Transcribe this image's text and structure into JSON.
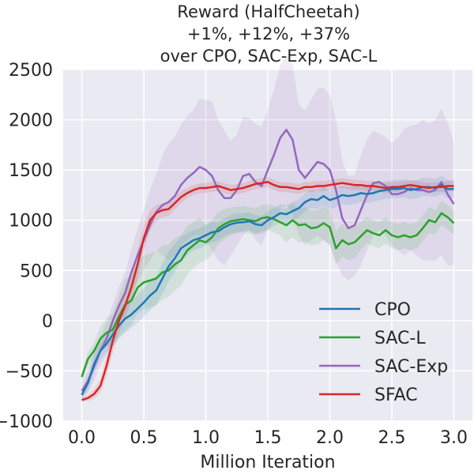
{
  "chart_data": {
    "type": "line",
    "title_lines": [
      "Reward (HalfCheetah)",
      "+1%, +12%, +37%",
      "over CPO, SAC-Exp, SAC-L"
    ],
    "xlabel": "Million Iteration",
    "ylabel": "",
    "xlim": [
      -0.15,
      3.15
    ],
    "ylim": [
      -1000,
      2500
    ],
    "xticks": [
      {
        "value": 0.0,
        "label": "0.0"
      },
      {
        "value": 0.5,
        "label": "0.5"
      },
      {
        "value": 1.0,
        "label": "1.0"
      },
      {
        "value": 1.5,
        "label": "1.5"
      },
      {
        "value": 2.0,
        "label": "2.0"
      },
      {
        "value": 2.5,
        "label": "2.5"
      },
      {
        "value": 3.0,
        "label": "3.0"
      }
    ],
    "yticks": [
      {
        "value": -1000,
        "label": "−1000"
      },
      {
        "value": -500,
        "label": "−500"
      },
      {
        "value": 0,
        "label": "0"
      },
      {
        "value": 500,
        "label": "500"
      },
      {
        "value": 1000,
        "label": "1000"
      },
      {
        "value": 1500,
        "label": "1500"
      },
      {
        "value": 2000,
        "label": "2000"
      },
      {
        "value": 2500,
        "label": "2500"
      }
    ],
    "grid": true,
    "background": "#eaeaf2",
    "legend_position": "lower-right",
    "series": [
      {
        "name": "CPO",
        "color": "#1f77b4",
        "x": [
          0.0,
          0.05,
          0.1,
          0.15,
          0.2,
          0.25,
          0.3,
          0.35,
          0.4,
          0.45,
          0.5,
          0.55,
          0.6,
          0.65,
          0.7,
          0.75,
          0.8,
          0.85,
          0.9,
          0.95,
          1.0,
          1.05,
          1.1,
          1.15,
          1.2,
          1.25,
          1.3,
          1.35,
          1.4,
          1.45,
          1.5,
          1.55,
          1.6,
          1.65,
          1.7,
          1.75,
          1.8,
          1.85,
          1.9,
          1.95,
          2.0,
          2.05,
          2.1,
          2.15,
          2.2,
          2.25,
          2.3,
          2.35,
          2.4,
          2.45,
          2.5,
          2.55,
          2.6,
          2.65,
          2.7,
          2.75,
          2.8,
          2.85,
          2.9,
          2.95,
          3.0
        ],
        "y": [
          -740,
          -620,
          -430,
          -300,
          -230,
          -140,
          -50,
          20,
          60,
          120,
          180,
          250,
          300,
          420,
          540,
          620,
          720,
          760,
          800,
          820,
          850,
          880,
          890,
          930,
          960,
          975,
          980,
          990,
          960,
          950,
          1000,
          1030,
          1070,
          1060,
          1090,
          1120,
          1180,
          1210,
          1200,
          1240,
          1200,
          1220,
          1250,
          1240,
          1250,
          1270,
          1260,
          1270,
          1290,
          1300,
          1310,
          1310,
          1320,
          1300,
          1310,
          1330,
          1330,
          1320,
          1350,
          1310,
          1310
        ],
        "lower": [
          -780,
          -700,
          -520,
          -390,
          -320,
          -250,
          -170,
          -120,
          -70,
          -20,
          40,
          100,
          160,
          270,
          390,
          480,
          600,
          650,
          700,
          720,
          750,
          780,
          800,
          840,
          870,
          880,
          890,
          900,
          870,
          860,
          910,
          940,
          980,
          970,
          1000,
          1030,
          1090,
          1120,
          1110,
          1150,
          1110,
          1130,
          1160,
          1150,
          1160,
          1180,
          1170,
          1180,
          1200,
          1210,
          1220,
          1220,
          1230,
          1210,
          1220,
          1240,
          1240,
          1230,
          1260,
          1220,
          1220
        ],
        "upper": [
          -700,
          -540,
          -340,
          -210,
          -140,
          -30,
          70,
          160,
          190,
          260,
          320,
          400,
          440,
          570,
          690,
          760,
          840,
          870,
          900,
          920,
          950,
          980,
          980,
          1020,
          1050,
          1070,
          1070,
          1080,
          1050,
          1040,
          1090,
          1120,
          1160,
          1150,
          1180,
          1210,
          1270,
          1300,
          1290,
          1330,
          1290,
          1310,
          1340,
          1330,
          1340,
          1360,
          1350,
          1360,
          1380,
          1390,
          1400,
          1400,
          1410,
          1390,
          1400,
          1420,
          1420,
          1410,
          1440,
          1400,
          1400
        ]
      },
      {
        "name": "SAC-L",
        "color": "#2ca02c",
        "x": [
          0.0,
          0.05,
          0.1,
          0.15,
          0.2,
          0.25,
          0.3,
          0.35,
          0.4,
          0.45,
          0.5,
          0.55,
          0.6,
          0.65,
          0.7,
          0.75,
          0.8,
          0.85,
          0.9,
          0.95,
          1.0,
          1.05,
          1.1,
          1.15,
          1.2,
          1.25,
          1.3,
          1.35,
          1.4,
          1.45,
          1.5,
          1.55,
          1.6,
          1.65,
          1.7,
          1.75,
          1.8,
          1.85,
          1.9,
          1.95,
          2.0,
          2.05,
          2.1,
          2.15,
          2.2,
          2.25,
          2.3,
          2.35,
          2.4,
          2.45,
          2.5,
          2.55,
          2.6,
          2.65,
          2.7,
          2.75,
          2.8,
          2.85,
          2.9,
          2.95,
          3.0
        ],
        "y": [
          -560,
          -380,
          -300,
          -180,
          -120,
          -90,
          40,
          160,
          200,
          330,
          380,
          400,
          420,
          480,
          500,
          560,
          600,
          700,
          750,
          800,
          780,
          830,
          920,
          960,
          990,
          1000,
          1010,
          1000,
          990,
          1020,
          1030,
          1010,
          980,
          950,
          1000,
          950,
          960,
          920,
          930,
          970,
          930,
          720,
          800,
          760,
          780,
          840,
          900,
          870,
          850,
          900,
          850,
          830,
          850,
          830,
          850,
          920,
          1000,
          980,
          1070,
          1030,
          970
        ],
        "lower": [
          -600,
          -450,
          -380,
          -300,
          -260,
          -250,
          -170,
          -100,
          -40,
          70,
          110,
          130,
          150,
          210,
          240,
          300,
          350,
          460,
          520,
          580,
          600,
          660,
          760,
          810,
          850,
          870,
          880,
          870,
          860,
          890,
          900,
          880,
          850,
          780,
          830,
          780,
          790,
          750,
          760,
          800,
          760,
          550,
          640,
          600,
          620,
          700,
          770,
          740,
          720,
          770,
          720,
          700,
          720,
          700,
          720,
          790,
          870,
          860,
          950,
          910,
          850
        ],
        "upper": [
          -520,
          -310,
          -220,
          -60,
          20,
          70,
          250,
          420,
          440,
          590,
          650,
          670,
          690,
          750,
          760,
          820,
          850,
          940,
          980,
          1020,
          960,
          1000,
          1080,
          1110,
          1130,
          1130,
          1140,
          1130,
          1120,
          1150,
          1160,
          1140,
          1110,
          1120,
          1170,
          1120,
          1130,
          1090,
          1100,
          1140,
          1100,
          890,
          960,
          920,
          940,
          980,
          1030,
          1000,
          980,
          1030,
          980,
          960,
          980,
          960,
          980,
          1050,
          1130,
          1100,
          1190,
          1150,
          1090
        ]
      },
      {
        "name": "SAC-Exp",
        "color": "#9467bd",
        "x": [
          0.0,
          0.05,
          0.1,
          0.15,
          0.2,
          0.25,
          0.3,
          0.35,
          0.4,
          0.45,
          0.5,
          0.55,
          0.6,
          0.65,
          0.7,
          0.75,
          0.8,
          0.85,
          0.9,
          0.95,
          1.0,
          1.05,
          1.1,
          1.15,
          1.2,
          1.25,
          1.3,
          1.35,
          1.4,
          1.45,
          1.5,
          1.55,
          1.6,
          1.65,
          1.7,
          1.75,
          1.8,
          1.85,
          1.9,
          1.95,
          2.0,
          2.05,
          2.1,
          2.15,
          2.2,
          2.25,
          2.3,
          2.35,
          2.4,
          2.45,
          2.5,
          2.55,
          2.6,
          2.65,
          2.7,
          2.75,
          2.8,
          2.85,
          2.9,
          2.95,
          3.0
        ],
        "y": [
          -700,
          -600,
          -460,
          -300,
          -180,
          0,
          150,
          280,
          480,
          650,
          800,
          950,
          1080,
          1150,
          1180,
          1240,
          1350,
          1420,
          1470,
          1530,
          1500,
          1440,
          1300,
          1220,
          1220,
          1300,
          1440,
          1460,
          1380,
          1340,
          1500,
          1650,
          1820,
          1900,
          1800,
          1500,
          1420,
          1500,
          1580,
          1560,
          1500,
          1300,
          1020,
          920,
          950,
          1100,
          1250,
          1370,
          1380,
          1340,
          1260,
          1260,
          1280,
          1320,
          1300,
          1300,
          1280,
          1300,
          1380,
          1260,
          1160
        ],
        "lower": [
          -780,
          -720,
          -600,
          -450,
          -340,
          -170,
          -40,
          80,
          250,
          380,
          500,
          600,
          700,
          650,
          600,
          650,
          750,
          800,
          850,
          850,
          800,
          700,
          600,
          550,
          650,
          750,
          850,
          900,
          800,
          750,
          900,
          1000,
          1100,
          1150,
          1050,
          850,
          750,
          800,
          850,
          800,
          750,
          600,
          450,
          400,
          450,
          550,
          700,
          850,
          900,
          850,
          750,
          700,
          650,
          700,
          650,
          600,
          600,
          600,
          650,
          550,
          550
        ],
        "upper": [
          -620,
          -480,
          -320,
          -150,
          -20,
          170,
          340,
          480,
          710,
          920,
          1100,
          1300,
          1460,
          1650,
          1760,
          1830,
          1950,
          2040,
          2090,
          2210,
          2200,
          2180,
          2000,
          1890,
          1790,
          1850,
          2030,
          2020,
          1960,
          1930,
          2100,
          2300,
          2540,
          2650,
          2550,
          2150,
          2090,
          2200,
          2310,
          2320,
          2250,
          2000,
          1590,
          1440,
          1450,
          1650,
          1800,
          1890,
          1860,
          1830,
          1770,
          1820,
          1910,
          1940,
          1950,
          2000,
          1960,
          2000,
          2110,
          1970,
          1770
        ]
      },
      {
        "name": "SFAC",
        "color": "#d62728",
        "x": [
          0.0,
          0.05,
          0.1,
          0.15,
          0.2,
          0.25,
          0.3,
          0.35,
          0.4,
          0.45,
          0.5,
          0.55,
          0.6,
          0.65,
          0.7,
          0.75,
          0.8,
          0.85,
          0.9,
          0.95,
          1.0,
          1.05,
          1.1,
          1.15,
          1.2,
          1.25,
          1.3,
          1.35,
          1.4,
          1.45,
          1.5,
          1.55,
          1.6,
          1.65,
          1.7,
          1.75,
          1.8,
          1.85,
          1.9,
          1.95,
          2.0,
          2.05,
          2.1,
          2.15,
          2.2,
          2.25,
          2.3,
          2.35,
          2.4,
          2.45,
          2.5,
          2.55,
          2.6,
          2.65,
          2.7,
          2.75,
          2.8,
          2.85,
          2.9,
          2.95,
          3.0
        ],
        "y": [
          -790,
          -770,
          -730,
          -650,
          -450,
          -200,
          0,
          150,
          330,
          560,
          820,
          1000,
          1070,
          1100,
          1110,
          1170,
          1230,
          1270,
          1300,
          1320,
          1320,
          1330,
          1340,
          1320,
          1300,
          1310,
          1320,
          1340,
          1360,
          1370,
          1380,
          1350,
          1330,
          1330,
          1320,
          1310,
          1330,
          1330,
          1340,
          1340,
          1350,
          1360,
          1370,
          1360,
          1350,
          1350,
          1340,
          1340,
          1330,
          1320,
          1330,
          1330,
          1340,
          1350,
          1340,
          1330,
          1320,
          1330,
          1330,
          1340,
          1340
        ],
        "lower": [
          -810,
          -800,
          -780,
          -720,
          -550,
          -320,
          -120,
          30,
          200,
          420,
          690,
          900,
          990,
          1030,
          1040,
          1110,
          1170,
          1220,
          1250,
          1270,
          1270,
          1280,
          1290,
          1270,
          1250,
          1260,
          1270,
          1290,
          1310,
          1320,
          1330,
          1300,
          1280,
          1280,
          1270,
          1260,
          1280,
          1280,
          1290,
          1290,
          1300,
          1310,
          1320,
          1310,
          1300,
          1300,
          1290,
          1290,
          1280,
          1270,
          1280,
          1280,
          1290,
          1300,
          1290,
          1280,
          1270,
          1280,
          1280,
          1290,
          1290
        ],
        "upper": [
          -770,
          -740,
          -680,
          -580,
          -350,
          -80,
          120,
          270,
          460,
          700,
          950,
          1100,
          1150,
          1170,
          1180,
          1230,
          1290,
          1320,
          1350,
          1370,
          1370,
          1380,
          1390,
          1370,
          1350,
          1360,
          1370,
          1390,
          1410,
          1420,
          1430,
          1400,
          1380,
          1380,
          1370,
          1360,
          1380,
          1380,
          1390,
          1390,
          1400,
          1410,
          1420,
          1410,
          1400,
          1400,
          1390,
          1390,
          1380,
          1370,
          1380,
          1380,
          1390,
          1400,
          1390,
          1380,
          1370,
          1380,
          1380,
          1390,
          1390
        ]
      }
    ]
  }
}
